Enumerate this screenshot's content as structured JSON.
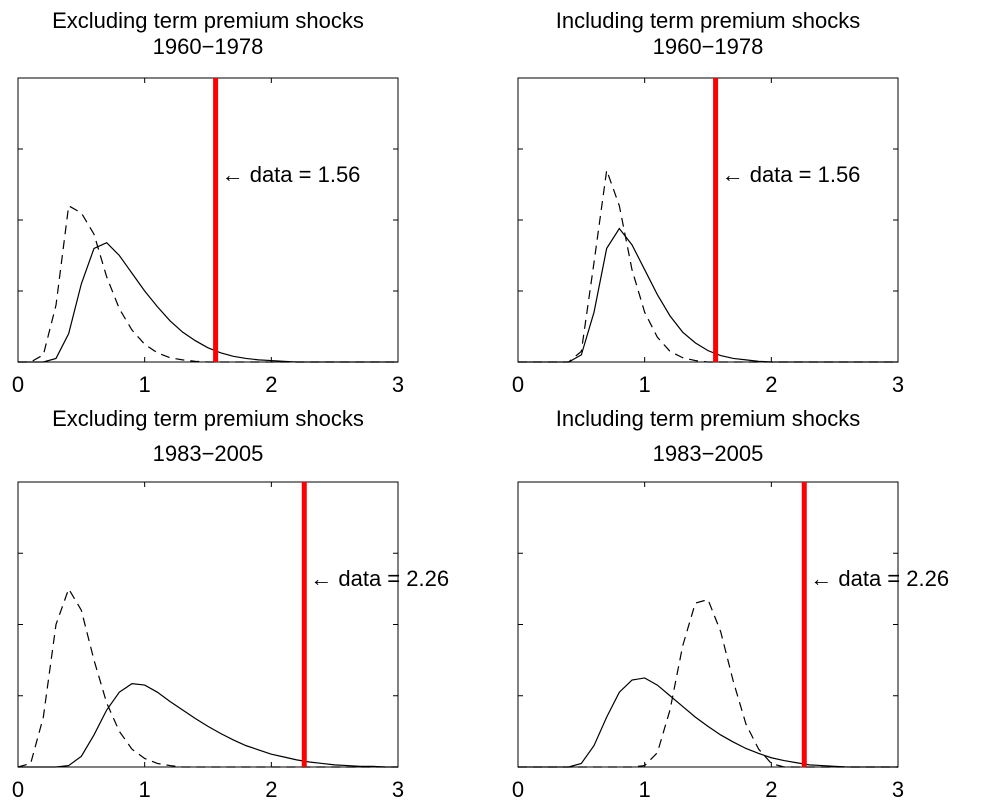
{
  "chart_data": [
    {
      "type": "line",
      "title": "Excluding term premium shocks",
      "subtitle": "1960−1978",
      "x": [
        0,
        0.1,
        0.2,
        0.3,
        0.4,
        0.5,
        0.6,
        0.7,
        0.8,
        0.9,
        1,
        1.1,
        1.2,
        1.3,
        1.4,
        1.5,
        1.6,
        1.7,
        1.8,
        1.9,
        2,
        2.1,
        2.2,
        2.3,
        2.4,
        2.5,
        2.6,
        2.7,
        2.8,
        2.9,
        3
      ],
      "series": [
        {
          "color": "#000000",
          "dash": "solid",
          "values": [
            0,
            0,
            0,
            0.05,
            0.4,
            1.1,
            1.6,
            1.68,
            1.5,
            1.25,
            1.0,
            0.78,
            0.58,
            0.42,
            0.3,
            0.2,
            0.13,
            0.08,
            0.05,
            0.03,
            0.02,
            0.01,
            0,
            0,
            0,
            0,
            0,
            0,
            0,
            0,
            0
          ]
        },
        {
          "color": "#000000",
          "dash": "dashed",
          "values": [
            0,
            0,
            0.1,
            0.8,
            2.2,
            2.1,
            1.8,
            1.2,
            0.75,
            0.45,
            0.25,
            0.13,
            0.06,
            0.03,
            0.01,
            0,
            0,
            0,
            0,
            0,
            0,
            0,
            0,
            0,
            0,
            0,
            0,
            0,
            0,
            0,
            0
          ]
        }
      ],
      "vline": {
        "value": 1.56,
        "color": "#ff0000"
      },
      "annotation": "← data = 1.56",
      "xlim": [
        0,
        3
      ],
      "xticks": [
        0,
        1,
        2,
        3
      ],
      "ylim": [
        0,
        4
      ],
      "yticks": [
        1,
        2,
        3
      ]
    },
    {
      "type": "line",
      "title": "Including term premium shocks",
      "subtitle": "1960−1978",
      "x": [
        0,
        0.1,
        0.2,
        0.3,
        0.4,
        0.5,
        0.6,
        0.7,
        0.8,
        0.9,
        1,
        1.1,
        1.2,
        1.3,
        1.4,
        1.5,
        1.6,
        1.7,
        1.8,
        1.9,
        2,
        2.1,
        2.2,
        2.3,
        2.4,
        2.5,
        2.6,
        2.7,
        2.8,
        2.9,
        3
      ],
      "series": [
        {
          "color": "#000000",
          "dash": "solid",
          "values": [
            0,
            0,
            0,
            0,
            0,
            0.1,
            0.7,
            1.6,
            1.88,
            1.65,
            1.3,
            0.95,
            0.65,
            0.42,
            0.27,
            0.16,
            0.09,
            0.05,
            0.03,
            0.01,
            0,
            0,
            0,
            0,
            0,
            0,
            0,
            0,
            0,
            0,
            0
          ]
        },
        {
          "color": "#000000",
          "dash": "dashed",
          "values": [
            0,
            0,
            0,
            0,
            0,
            0.15,
            1.4,
            2.7,
            2.2,
            1.3,
            0.7,
            0.35,
            0.15,
            0.06,
            0.02,
            0,
            0,
            0,
            0,
            0,
            0,
            0,
            0,
            0,
            0,
            0,
            0,
            0,
            0,
            0,
            0
          ]
        }
      ],
      "vline": {
        "value": 1.56,
        "color": "#ff0000"
      },
      "annotation": "← data = 1.56",
      "xlim": [
        0,
        3
      ],
      "xticks": [
        0,
        1,
        2,
        3
      ],
      "ylim": [
        0,
        4
      ],
      "yticks": [
        1,
        2,
        3
      ]
    },
    {
      "type": "line",
      "title": "Excluding term premium shocks",
      "subtitle": "1983−2005",
      "x": [
        0,
        0.1,
        0.2,
        0.3,
        0.4,
        0.5,
        0.6,
        0.7,
        0.8,
        0.9,
        1,
        1.1,
        1.2,
        1.3,
        1.4,
        1.5,
        1.6,
        1.7,
        1.8,
        1.9,
        2,
        2.1,
        2.2,
        2.3,
        2.4,
        2.5,
        2.6,
        2.7,
        2.8,
        2.9,
        3
      ],
      "series": [
        {
          "color": "#000000",
          "dash": "solid",
          "values": [
            0,
            0,
            0,
            0,
            0.02,
            0.15,
            0.45,
            0.8,
            1.05,
            1.17,
            1.15,
            1.05,
            0.92,
            0.8,
            0.68,
            0.57,
            0.47,
            0.38,
            0.3,
            0.24,
            0.18,
            0.14,
            0.1,
            0.07,
            0.05,
            0.03,
            0.02,
            0.01,
            0.01,
            0,
            0
          ]
        },
        {
          "color": "#000000",
          "dash": "dashed",
          "values": [
            0,
            0.05,
            0.7,
            2.0,
            2.5,
            2.2,
            1.5,
            0.9,
            0.5,
            0.25,
            0.12,
            0.05,
            0.02,
            0,
            0,
            0,
            0,
            0,
            0,
            0,
            0,
            0,
            0,
            0,
            0,
            0,
            0,
            0,
            0,
            0,
            0
          ]
        }
      ],
      "vline": {
        "value": 2.26,
        "color": "#ff0000"
      },
      "annotation": "← data = 2.26",
      "xlim": [
        0,
        3
      ],
      "xticks": [
        0,
        1,
        2,
        3
      ],
      "ylim": [
        0,
        4
      ],
      "yticks": [
        1,
        2,
        3
      ]
    },
    {
      "type": "line",
      "title": "Including term premium shocks",
      "subtitle": "1983−2005",
      "x": [
        0,
        0.1,
        0.2,
        0.3,
        0.4,
        0.5,
        0.6,
        0.7,
        0.8,
        0.9,
        1,
        1.1,
        1.2,
        1.3,
        1.4,
        1.5,
        1.6,
        1.7,
        1.8,
        1.9,
        2,
        2.1,
        2.2,
        2.3,
        2.4,
        2.5,
        2.6,
        2.7,
        2.8,
        2.9,
        3
      ],
      "series": [
        {
          "color": "#000000",
          "dash": "solid",
          "values": [
            0,
            0,
            0,
            0,
            0,
            0.05,
            0.3,
            0.7,
            1.05,
            1.22,
            1.25,
            1.15,
            1.0,
            0.85,
            0.7,
            0.57,
            0.45,
            0.35,
            0.26,
            0.19,
            0.13,
            0.09,
            0.06,
            0.03,
            0.02,
            0.01,
            0,
            0,
            0,
            0,
            0
          ]
        },
        {
          "color": "#000000",
          "dash": "dashed",
          "values": [
            0,
            0,
            0,
            0,
            0,
            0,
            0,
            0,
            0,
            0,
            0.02,
            0.2,
            0.8,
            1.7,
            2.3,
            2.35,
            1.9,
            1.2,
            0.6,
            0.25,
            0.05,
            0,
            0,
            0,
            0,
            0,
            0,
            0,
            0,
            0,
            0
          ]
        }
      ],
      "vline": {
        "value": 2.26,
        "color": "#ff0000"
      },
      "annotation": "← data = 2.26",
      "xlim": [
        0,
        3
      ],
      "xticks": [
        0,
        1,
        2,
        3
      ],
      "ylim": [
        0,
        4
      ],
      "yticks": [
        1,
        2,
        3
      ]
    }
  ]
}
